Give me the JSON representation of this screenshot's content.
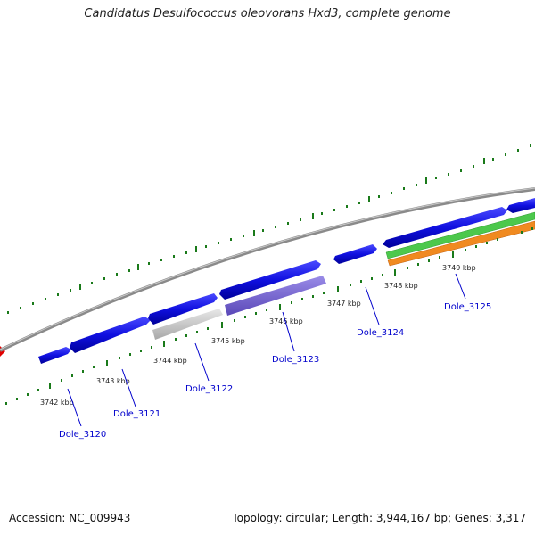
{
  "title": "Candidatus Desulfococcus oleovorans Hxd3, complete genome",
  "footer": {
    "accession": "Accession: NC_009943",
    "topology": "Topology: circular; Length: 3,944,167 bp; Genes: 3,317"
  },
  "colors": {
    "backbone": "#8a8a8a",
    "cds": "#1010e0",
    "cds_light": "#c4c4c4",
    "cds_purple": "#7a6ad0",
    "green_track": "#4cc84c",
    "orange_track": "#f08a20",
    "tick": "#1a7a1a",
    "marker": "#e00000",
    "label": "#0000cc"
  },
  "scale": {
    "tick_labels": [
      "3742 kbp",
      "3743 kbp",
      "3744 kbp",
      "3745 kbp",
      "3746 kbp",
      "3747 kbp",
      "3748 kbp",
      "3749 kbp"
    ]
  },
  "genes": [
    "Dole_3120",
    "Dole_3121",
    "Dole_3122",
    "Dole_3123",
    "Dole_3124",
    "Dole_3125"
  ]
}
